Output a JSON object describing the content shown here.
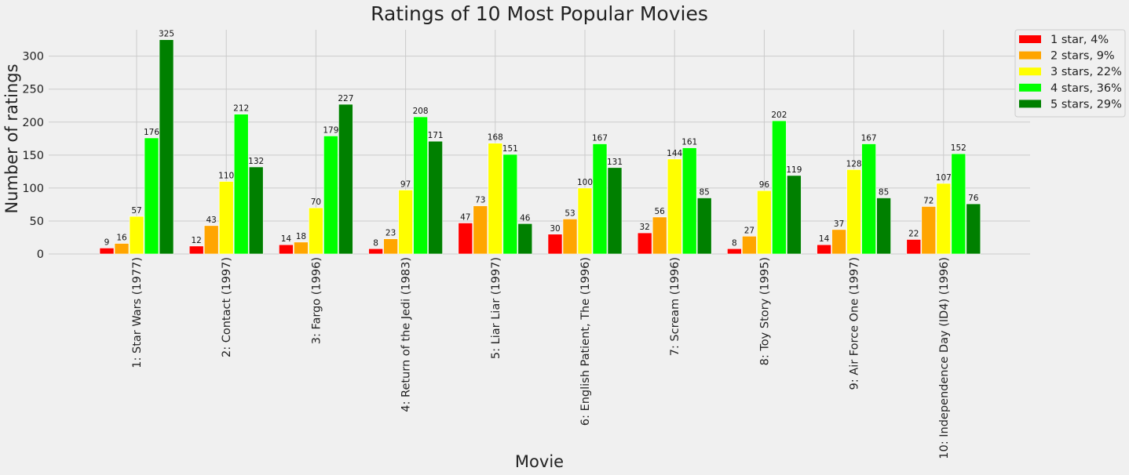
{
  "chart_data": {
    "type": "bar",
    "title": "Ratings of 10 Most Popular Movies",
    "xlabel": "Movie",
    "ylabel": "Number of ratings",
    "ylim": [
      0,
      340
    ],
    "yticks": [
      0,
      50,
      100,
      150,
      200,
      250,
      300
    ],
    "grid": true,
    "legend_position": "top-right",
    "categories": [
      "1: Star Wars (1977)",
      "2: Contact (1997)",
      "3: Fargo (1996)",
      "4: Return of the Jedi (1983)",
      "5: Liar Liar (1997)",
      "6: English Patient, The (1996)",
      "7: Scream (1996)",
      "8: Toy Story (1995)",
      "9: Air Force One (1997)",
      "10: Independence Day (ID4) (1996)"
    ],
    "series": [
      {
        "name": "1 star, 4%",
        "color": "#ff0000",
        "values": [
          9,
          12,
          14,
          8,
          47,
          30,
          32,
          8,
          14,
          22
        ]
      },
      {
        "name": "2 stars, 9%",
        "color": "#ffa500",
        "values": [
          16,
          43,
          18,
          23,
          73,
          53,
          56,
          27,
          37,
          72
        ]
      },
      {
        "name": "3 stars, 22%",
        "color": "#ffff00",
        "values": [
          57,
          110,
          70,
          97,
          168,
          100,
          144,
          96,
          128,
          107
        ]
      },
      {
        "name": "4 stars, 36%",
        "color": "#00ff00",
        "values": [
          176,
          212,
          179,
          208,
          151,
          167,
          161,
          202,
          167,
          152
        ]
      },
      {
        "name": "5 stars, 29%",
        "color": "#008000",
        "values": [
          325,
          132,
          227,
          171,
          46,
          131,
          85,
          119,
          85,
          76
        ]
      }
    ]
  }
}
